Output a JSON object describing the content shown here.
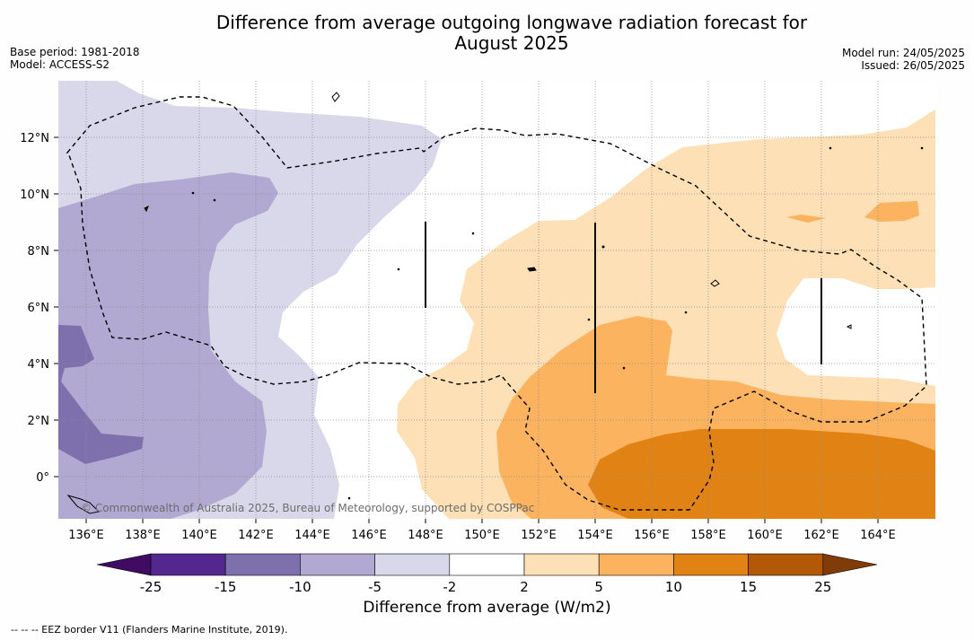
{
  "title_line1": "Difference from average outgoing longwave radiation forecast for",
  "title_line2": "August 2025",
  "base_period": "Base period: 1981-2018",
  "model": "Model: ACCESS-S2",
  "model_run": "Model run: 24/05/2025",
  "issued": "Issued: 26/05/2025",
  "copyright": "© Commonwealth of Australia 2025, Bureau of Meteorology, supported by COSPPac",
  "x_ticks": [
    "136°E",
    "138°E",
    "140°E",
    "142°E",
    "144°E",
    "146°E",
    "148°E",
    "150°E",
    "152°E",
    "154°E",
    "156°E",
    "158°E",
    "160°E",
    "162°E",
    "164°E"
  ],
  "y_ticks": [
    "12°N",
    "10°N",
    "8°N",
    "6°N",
    "4°N",
    "2°N",
    "0°"
  ],
  "colorbar": {
    "ticks": [
      "-25",
      "-15",
      "-10",
      "-5",
      "-2",
      "2",
      "5",
      "10",
      "15",
      "25"
    ],
    "colors": [
      "#3f0b63",
      "#54278f",
      "#7e70ad",
      "#b1a9d2",
      "#d8d8ea",
      "#ffffff",
      "#fde0b5",
      "#fbb35f",
      "#e08214",
      "#b35806",
      "#7f3b08"
    ],
    "label": "Difference from average (W/m2)"
  },
  "footnote": "--  --  -- EEZ border V11 (Flanders Marine Institute, 2019)."
}
